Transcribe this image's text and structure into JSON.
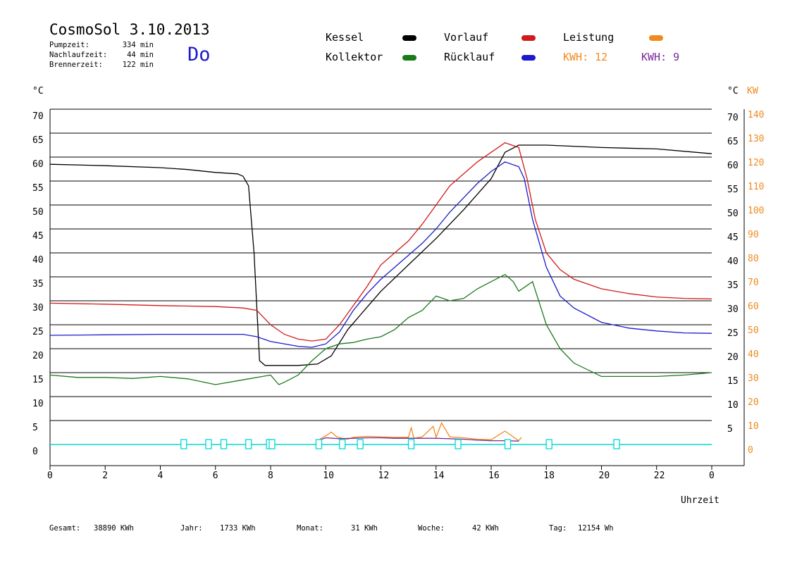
{
  "header": {
    "title": "CosmoSol 3.10.2013",
    "day": "Do",
    "info": [
      {
        "label": "Pumpzeit:",
        "value": "334 min"
      },
      {
        "label": "Nachlaufzeit:",
        "value": "44 min"
      },
      {
        "label": "Brennerzeit:",
        "value": "122 min"
      }
    ]
  },
  "legend": {
    "kessel": "Kessel",
    "kollektor": "Kollektor",
    "vorlauf": "Vorlauf",
    "ruecklauf": "Rücklauf",
    "leistung": "Leistung",
    "kwh1": "KWH: 12",
    "kwh2": "KWH: 9"
  },
  "colors": {
    "kessel": "#000000",
    "kollektor": "#1a7a1a",
    "vorlauf": "#d11a1a",
    "ruecklauf": "#1a1acc",
    "leistung": "#f08a1e",
    "kwh2": "#7a2a9a",
    "pump": "#00d8d8"
  },
  "axes": {
    "left_unit": "°C",
    "right_unit_c": "°C",
    "right_unit_kw": "KW",
    "xlabel": "Uhrzeit"
  },
  "bottom": {
    "gesamt_label": "Gesamt:",
    "gesamt_value": "38890 KWh",
    "jahr_label": "Jahr:",
    "jahr_value": "1733 KWh",
    "monat_label": "Monat:",
    "monat_value": "31 KWh",
    "woche_label": "Woche:",
    "woche_value": "42 KWh",
    "tag_label": "Tag:",
    "tag_value": "12154 Wh"
  },
  "chart_data": {
    "type": "line",
    "xlim": [
      0,
      24
    ],
    "ylim": [
      0,
      70
    ],
    "y2lim": [
      0,
      140
    ],
    "x_ticks": [
      "0",
      "2",
      "4",
      "6",
      "8",
      "10",
      "12",
      "14",
      "16",
      "18",
      "20",
      "22",
      "0"
    ],
    "y_ticks": [
      "0",
      "5",
      "10",
      "15",
      "20",
      "25",
      "30",
      "35",
      "40",
      "45",
      "50",
      "55",
      "60",
      "65",
      "70"
    ],
    "y_ticks_right_c": [
      "5",
      "10",
      "15",
      "20",
      "25",
      "30",
      "35",
      "40",
      "45",
      "50",
      "55",
      "60",
      "65",
      "70"
    ],
    "y_ticks_right_kw": [
      "0",
      "10",
      "20",
      "30",
      "40",
      "50",
      "60",
      "70",
      "80",
      "90",
      "100",
      "110",
      "120",
      "130",
      "140"
    ],
    "grid": "horizontal",
    "series": [
      {
        "name": "Kessel",
        "x": [
          0,
          2,
          4,
          5,
          6,
          6.8,
          7.0,
          7.2,
          7.4,
          7.6,
          7.8,
          8.0,
          9,
          9.7,
          10.2,
          10.8,
          11.4,
          12,
          13,
          14,
          15,
          16,
          16.5,
          17,
          17.5,
          18,
          20,
          22,
          24
        ],
        "y": [
          58.5,
          58.2,
          57.8,
          57.4,
          56.8,
          56.5,
          56,
          54,
          40,
          17.5,
          16.5,
          16.5,
          16.5,
          16.8,
          18.5,
          24,
          28,
          32,
          37.5,
          43,
          49,
          55.5,
          61,
          62.5,
          62.5,
          62.5,
          62,
          61.7,
          60.7
        ]
      },
      {
        "name": "Kollektor",
        "x": [
          0,
          1,
          2,
          3,
          4,
          5,
          6,
          7,
          8,
          8.3,
          8.5,
          9,
          9.5,
          10,
          10.5,
          11,
          11.5,
          12,
          12.5,
          13,
          13.5,
          14,
          14.5,
          15,
          15.5,
          16,
          16.5,
          16.8,
          17,
          17.5,
          18,
          18.5,
          19,
          20,
          21,
          22,
          23,
          24
        ],
        "y": [
          14.5,
          14,
          14,
          13.8,
          14.2,
          13.7,
          12.5,
          13.5,
          14.5,
          12.5,
          13,
          14.5,
          17.5,
          20,
          21,
          21.3,
          22,
          22.5,
          24,
          26.5,
          28,
          31,
          30,
          30.5,
          32.5,
          34,
          35.5,
          34,
          32,
          34,
          25,
          20,
          17,
          14.2,
          14.2,
          14.2,
          14.5,
          15
        ]
      },
      {
        "name": "Vorlauf",
        "x": [
          0,
          2,
          4,
          6,
          7,
          7.5,
          8,
          8.5,
          9,
          9.5,
          10,
          10.5,
          11,
          11.5,
          12,
          12.5,
          13,
          13.5,
          14,
          14.5,
          15,
          15.5,
          16,
          16.5,
          17,
          17.3,
          17.6,
          18,
          18.5,
          19,
          20,
          21,
          22,
          23,
          24
        ],
        "y": [
          29.5,
          29.3,
          29,
          28.8,
          28.5,
          28,
          25,
          23,
          22,
          21.6,
          22,
          25,
          29,
          33,
          37.5,
          40,
          42.5,
          46,
          50,
          54,
          56.5,
          59,
          61,
          63,
          62,
          55.5,
          47,
          40,
          36.5,
          34.5,
          32.5,
          31.5,
          30.8,
          30.5,
          30.4
        ]
      },
      {
        "name": "Rücklauf",
        "x": [
          0,
          2,
          4,
          6,
          7,
          7.5,
          8,
          9,
          9.5,
          10,
          10.5,
          11,
          11.5,
          12,
          12.5,
          13,
          13.5,
          14,
          14.5,
          15,
          15.5,
          16,
          16.5,
          17,
          17.2,
          17.5,
          18,
          18.5,
          19,
          20,
          21,
          22,
          23,
          24
        ],
        "y": [
          22.8,
          22.9,
          23,
          23,
          23,
          22.5,
          21.5,
          20.5,
          20.3,
          21,
          23.5,
          28,
          31.5,
          34.5,
          37,
          39.5,
          42,
          45,
          48.5,
          51.5,
          54.5,
          57,
          59,
          58,
          55.5,
          47,
          37,
          31,
          28.5,
          25.5,
          24.3,
          23.7,
          23.3,
          23.2
        ]
      },
      {
        "name": "Leistung",
        "x": [
          9.7,
          9.8,
          10,
          10.2,
          10.4,
          10.6,
          10.8,
          11,
          11.5,
          12,
          12.5,
          13,
          13.1,
          13.2,
          13.5,
          13.9,
          14,
          14.2,
          14.5,
          15,
          15.5,
          16,
          16.5,
          17,
          17.1
        ],
        "y": [
          0,
          1.2,
          1.8,
          2.6,
          1.6,
          1.3,
          1.1,
          1.5,
          1.7,
          1.6,
          1.5,
          1.5,
          3.5,
          1.3,
          1.6,
          3.8,
          1.5,
          4.5,
          1.6,
          1.4,
          1.1,
          1.0,
          2.8,
          0.8,
          1.5
        ]
      },
      {
        "name": "KWH: 9",
        "x": [
          9.8,
          10,
          10.5,
          11,
          11.5,
          12,
          12.5,
          13,
          13.5,
          14,
          14.5,
          15,
          15.5,
          16,
          16.5,
          17
        ],
        "y": [
          1.0,
          1.4,
          1.2,
          1.3,
          1.4,
          1.4,
          1.3,
          1.3,
          1.3,
          1.3,
          1.2,
          1.1,
          0.9,
          0.8,
          0.8,
          0.7
        ]
      }
    ],
    "pump_markers": [
      4.85,
      5.75,
      6.3,
      7.2,
      7.95,
      8.05,
      9.75,
      10.6,
      11.25,
      13.1,
      14.8,
      16.6,
      18.1,
      20.55
    ]
  }
}
